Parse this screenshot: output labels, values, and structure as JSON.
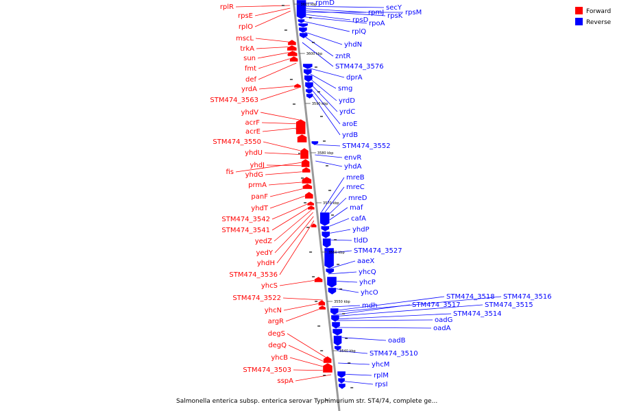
{
  "legend": {
    "items": [
      {
        "label": "Forward",
        "color": "#ff0000"
      },
      {
        "label": "Reverse",
        "color": "#0000ff"
      }
    ]
  },
  "colors": {
    "forward": "#ff0000",
    "reverse": "#0000ff",
    "backbone": "#999999"
  },
  "footer": {
    "caption": "Salmonella enterica subsp. enterica serovar Typhimurium str. ST4/74, complete ge..."
  },
  "ticks": [
    "3610 kbp",
    "3600 kbp",
    "3590 kbp",
    "3580 kbp",
    "3570 kbp",
    "3560 kbp",
    "3550 kbp",
    "3540 kbp"
  ],
  "reverse_genes": [
    "rpmD",
    "secY",
    "rpmJ",
    "rpsK",
    "rpsM",
    "rpsD",
    "rpoA",
    "rplQ",
    "yhdN",
    "zntR",
    "STM474_3576",
    "dprA",
    "smg",
    "yrdD",
    "yrdC",
    "aroE",
    "yrdB",
    "STM474_3552",
    "envR",
    "yhdA",
    "mreB",
    "mreC",
    "mreD",
    "maf",
    "cafA",
    "yhdP",
    "tldD",
    "STM474_3527",
    "aaeX",
    "yhcQ",
    "yhcP",
    "yhcO",
    "STM474_3518",
    "STM474_3516",
    "mdh",
    "STM474_3517",
    "STM474_3515",
    "oadG",
    "STM474_3514",
    "oadA",
    "oadB",
    "STM474_3510",
    "yhcM",
    "rplM",
    "rpsI"
  ],
  "forward_genes": [
    "rplR",
    "rpsE",
    "rplO",
    "mscL",
    "trkA",
    "sun",
    "fmt",
    "def",
    "yrdA",
    "STM474_3563",
    "yhdV",
    "acrF",
    "acrE",
    "STM474_3550",
    "yhdU",
    "yhdJ",
    "fis",
    "yhdG",
    "prmA",
    "panF",
    "yhdT",
    "STM474_3542",
    "STM474_3541",
    "yedZ",
    "yedY",
    "yhdH",
    "STM474_3536",
    "yhcS",
    "STM474_3522",
    "yhcN",
    "argR",
    "degS",
    "degQ",
    "yhcB",
    "STM474_3503",
    "sspA"
  ]
}
